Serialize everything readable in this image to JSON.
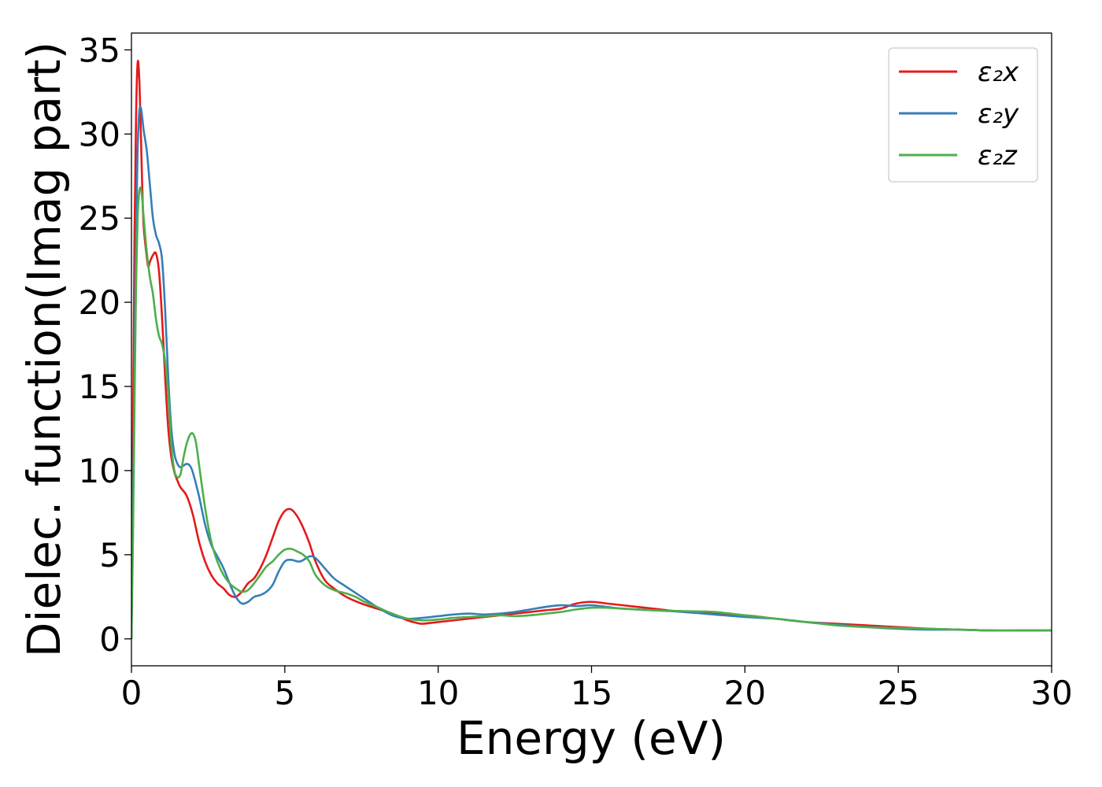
{
  "chart_data": {
    "type": "line",
    "title": "",
    "xlabel": "Energy (eV)",
    "ylabel": "Dielec. function(Imag part)",
    "xlim": [
      0,
      30
    ],
    "ylim": [
      -1.6,
      36
    ],
    "xticks": [
      0,
      5,
      10,
      15,
      20,
      25,
      30
    ],
    "yticks": [
      0,
      5,
      10,
      15,
      20,
      25,
      30,
      35
    ],
    "grid": false,
    "legend_position": "top-right",
    "series": [
      {
        "name": "ε₂x",
        "color": "#e41a1c",
        "x": [
          0,
          0.05,
          0.1,
          0.15,
          0.2,
          0.25,
          0.3,
          0.35,
          0.4,
          0.5,
          0.55,
          0.6,
          0.7,
          0.8,
          0.9,
          1.0,
          1.1,
          1.2,
          1.3,
          1.4,
          1.5,
          1.6,
          1.8,
          2.0,
          2.2,
          2.4,
          2.6,
          2.8,
          3.0,
          3.2,
          3.4,
          3.6,
          3.8,
          4.0,
          4.2,
          4.4,
          4.6,
          4.8,
          5.0,
          5.2,
          5.4,
          5.6,
          5.8,
          6.0,
          6.3,
          6.6,
          7.0,
          7.5,
          8.0,
          8.5,
          9.0,
          9.3,
          9.5,
          10.0,
          10.5,
          11.0,
          11.5,
          12.0,
          12.5,
          13.0,
          13.5,
          14.0,
          14.5,
          15.0,
          15.5,
          16.0,
          17.0,
          18.0,
          19.0,
          20.0,
          21.0,
          22.0,
          23.0,
          24.0,
          25.0,
          26.0,
          27.0,
          28.0,
          29.0,
          30.0
        ],
        "values": [
          0,
          12,
          24,
          31,
          34.2,
          33.5,
          30.5,
          27,
          24.5,
          22.7,
          22.1,
          22.4,
          22.8,
          22.9,
          21.8,
          19,
          15.5,
          12.5,
          10.8,
          9.9,
          9.4,
          9.0,
          8.5,
          7.4,
          5.8,
          4.6,
          3.8,
          3.3,
          3.0,
          2.6,
          2.5,
          2.8,
          3.3,
          3.6,
          4.2,
          5.0,
          6.0,
          7.0,
          7.6,
          7.7,
          7.3,
          6.6,
          5.7,
          4.6,
          3.5,
          3.0,
          2.5,
          2.1,
          1.8,
          1.5,
          1.1,
          0.95,
          0.9,
          1.0,
          1.1,
          1.2,
          1.3,
          1.4,
          1.5,
          1.6,
          1.7,
          1.8,
          2.1,
          2.2,
          2.1,
          2.0,
          1.8,
          1.6,
          1.5,
          1.4,
          1.2,
          1.0,
          0.9,
          0.8,
          0.7,
          0.6,
          0.55,
          0.5,
          0.5,
          0.5
        ]
      },
      {
        "name": "ε₂y",
        "color": "#377eb8",
        "x": [
          0,
          0.05,
          0.1,
          0.15,
          0.2,
          0.25,
          0.3,
          0.35,
          0.4,
          0.5,
          0.6,
          0.7,
          0.8,
          0.9,
          1.0,
          1.1,
          1.2,
          1.3,
          1.4,
          1.5,
          1.6,
          1.7,
          1.8,
          1.9,
          2.0,
          2.2,
          2.4,
          2.6,
          2.8,
          3.0,
          3.2,
          3.4,
          3.6,
          3.8,
          4.0,
          4.2,
          4.4,
          4.6,
          4.8,
          5.0,
          5.2,
          5.5,
          5.8,
          6.0,
          6.3,
          6.6,
          7.0,
          7.5,
          8.0,
          8.5,
          9.0,
          9.5,
          10.0,
          10.5,
          11.0,
          11.5,
          12.0,
          12.5,
          13.0,
          13.5,
          14.0,
          14.5,
          15.0,
          15.5,
          16.0,
          17.0,
          18.0,
          19.0,
          20.0,
          21.0,
          22.0,
          23.0,
          24.0,
          25.0,
          26.0,
          27.0,
          28.0,
          29.0,
          30.0
        ],
        "values": [
          0,
          8,
          16,
          24,
          29,
          31.2,
          31.6,
          31.0,
          30.2,
          29.0,
          27.0,
          25.0,
          24.0,
          23.5,
          22.5,
          19.5,
          15.5,
          12.5,
          11.0,
          10.4,
          10.2,
          10.3,
          10.4,
          10.3,
          9.9,
          8.5,
          6.8,
          5.6,
          4.9,
          4.2,
          3.3,
          2.5,
          2.1,
          2.2,
          2.5,
          2.6,
          2.8,
          3.2,
          4.0,
          4.6,
          4.7,
          4.6,
          4.9,
          4.8,
          4.2,
          3.6,
          3.1,
          2.5,
          1.9,
          1.4,
          1.2,
          1.25,
          1.35,
          1.45,
          1.5,
          1.45,
          1.5,
          1.6,
          1.75,
          1.9,
          2.0,
          1.95,
          2.0,
          1.9,
          1.8,
          1.7,
          1.6,
          1.45,
          1.3,
          1.2,
          1.0,
          0.85,
          0.7,
          0.6,
          0.55,
          0.55,
          0.5,
          0.5,
          0.5
        ]
      },
      {
        "name": "ε₂z",
        "color": "#4daf4a",
        "x": [
          0,
          0.05,
          0.1,
          0.15,
          0.2,
          0.25,
          0.3,
          0.35,
          0.4,
          0.5,
          0.6,
          0.7,
          0.8,
          0.9,
          1.0,
          1.1,
          1.2,
          1.3,
          1.4,
          1.5,
          1.6,
          1.7,
          1.8,
          1.9,
          2.0,
          2.1,
          2.2,
          2.4,
          2.6,
          2.8,
          3.0,
          3.2,
          3.4,
          3.6,
          3.8,
          4.0,
          4.2,
          4.4,
          4.6,
          4.8,
          5.0,
          5.2,
          5.4,
          5.6,
          5.8,
          6.0,
          6.3,
          6.6,
          7.0,
          7.3,
          7.6,
          8.0,
          8.5,
          9.0,
          9.5,
          10.0,
          10.5,
          11.0,
          11.5,
          12.0,
          12.5,
          13.0,
          13.5,
          14.0,
          14.5,
          15.0,
          15.5,
          16.0,
          17.0,
          18.0,
          19.0,
          20.0,
          21.0,
          22.0,
          23.0,
          24.0,
          25.0,
          26.0,
          27.0,
          28.0,
          29.0,
          30.0
        ],
        "values": [
          0,
          6,
          14,
          21,
          25,
          26.5,
          26.8,
          26.2,
          25.0,
          23.0,
          21.5,
          20.5,
          19.0,
          18.0,
          17.5,
          16.5,
          14.5,
          11.5,
          10.0,
          9.6,
          9.8,
          10.8,
          11.6,
          12.1,
          12.2,
          11.7,
          10.4,
          7.8,
          5.8,
          4.6,
          3.8,
          3.3,
          3.0,
          2.8,
          2.9,
          3.3,
          3.8,
          4.3,
          4.6,
          5.0,
          5.3,
          5.35,
          5.2,
          5.0,
          4.6,
          3.8,
          3.2,
          2.9,
          2.7,
          2.5,
          2.2,
          1.9,
          1.5,
          1.2,
          1.1,
          1.15,
          1.25,
          1.3,
          1.35,
          1.4,
          1.35,
          1.4,
          1.5,
          1.6,
          1.75,
          1.85,
          1.85,
          1.8,
          1.7,
          1.65,
          1.6,
          1.4,
          1.2,
          1.0,
          0.8,
          0.7,
          0.65,
          0.6,
          0.55,
          0.5,
          0.5,
          0.5
        ]
      }
    ]
  }
}
